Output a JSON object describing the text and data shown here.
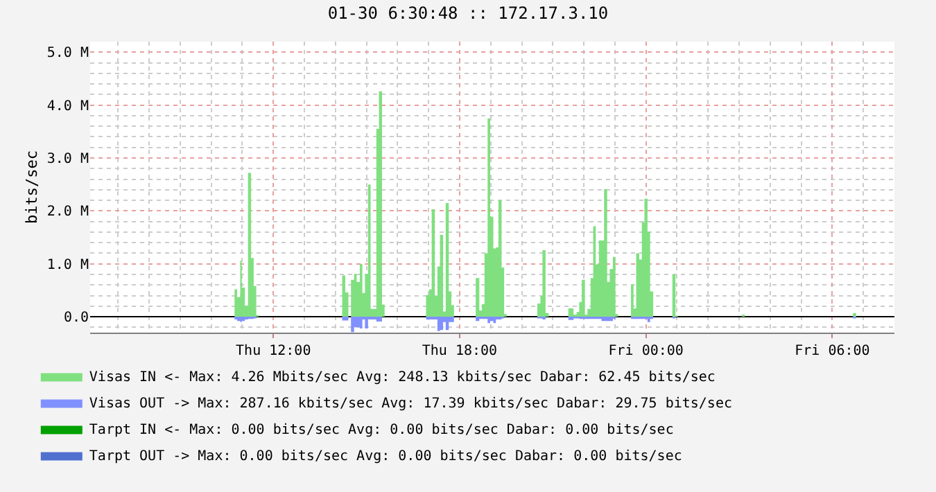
{
  "chart_data": {
    "type": "area",
    "title": "01-30 6:30:48 :: 172.17.3.10",
    "ylabel": "bits/sec",
    "x": [
      "--01-29T10:45",
      "--01-29T10:50",
      "--01-29T10:56",
      "--01-29T10:59",
      "--01-29T11:05",
      "--01-29T11:11",
      "--01-29T11:17",
      "--01-29T11:22",
      "--01-29T11:27",
      "--01-29T11:32",
      "--01-29T14:13",
      "--01-29T14:19",
      "--01-29T14:25",
      "--01-29T14:30",
      "--01-29T14:36",
      "--01-29T14:41",
      "--01-29T14:47",
      "--01-29T14:52",
      "--01-29T14:57",
      "--01-29T15:03",
      "--01-29T15:08",
      "--01-29T15:13",
      "--01-29T15:19",
      "--01-29T15:24",
      "--01-29T15:30",
      "--01-29T15:35",
      "--01-29T16:55",
      "--01-29T17:01",
      "--01-29T17:06",
      "--01-29T17:12",
      "--01-29T17:17",
      "--01-29T17:22",
      "--01-29T17:28",
      "--01-29T17:33",
      "--01-29T17:39",
      "--01-29T17:44",
      "--01-29T17:49",
      "--01-29T18:31",
      "--01-29T18:38",
      "--01-29T18:43",
      "--01-29T18:48",
      "--01-29T18:54",
      "--01-29T18:59",
      "--01-29T19:05",
      "--01-29T19:10",
      "--01-29T19:15",
      "--01-29T19:21",
      "--01-29T19:26",
      "--01-29T19:31",
      "--01-29T20:30",
      "--01-29T20:36",
      "--01-29T20:40",
      "--01-29T20:46",
      "--01-29T20:52",
      "--01-29T21:30",
      "--01-29T21:36",
      "--01-29T21:40",
      "--01-29T21:46",
      "--01-29T21:51",
      "--01-29T21:56",
      "--01-29T22:02",
      "--01-29T22:07",
      "--01-29T22:13",
      "--01-29T22:18",
      "--01-29T22:23",
      "--01-29T22:29",
      "--01-29T22:34",
      "--01-29T22:39",
      "--01-29T22:45",
      "--01-29T22:50",
      "--01-29T22:56",
      "--01-29T23:01",
      "--01-29T23:06",
      "--01-29T23:31",
      "--01-29T23:36",
      "--01-29T23:41",
      "--01-29T23:47",
      "--01-29T23:52",
      "--01-29T23:57",
      "--01-30T00:03",
      "--01-30T00:08",
      "--01-30T00:14",
      "--01-30T00:51",
      "--01-30T00:57",
      "--01-30T01:02",
      "--01-30T03:05",
      "--01-30T03:11",
      "--01-30T06:40",
      "--01-30T06:46"
    ],
    "series": [
      {
        "name": "Visas IN <- Max: 4.26 Mbits/sec Avg: 248.13 kbits/sec Dabar: 62.45 bits/sec",
        "color": "#80e080",
        "values": [
          0.52,
          0.37,
          1.06,
          0.55,
          0.21,
          2.72,
          1.11,
          0.58,
          0.03,
          0,
          0.78,
          0.46,
          0,
          0.7,
          0.81,
          0.66,
          1.0,
          0.45,
          0.81,
          2.5,
          0.15,
          0.15,
          3.55,
          4.26,
          0.23,
          0,
          0.41,
          0.52,
          2.03,
          0.4,
          0.95,
          1.55,
          0.1,
          2.15,
          0.48,
          0.22,
          0,
          0.73,
          0.12,
          0.24,
          1.2,
          3.75,
          1.89,
          1.29,
          1.31,
          2.2,
          0.93,
          0.05,
          0,
          0.25,
          0.39,
          1.26,
          0.07,
          0,
          0.16,
          0.16,
          0.04,
          0.09,
          0.28,
          0.7,
          0.04,
          0.15,
          0.73,
          1.71,
          0.99,
          1.44,
          1.44,
          2.41,
          0.66,
          0.9,
          1.13,
          0.05,
          0,
          0.61,
          0.16,
          1.2,
          1.08,
          1.79,
          2.23,
          1.61,
          0.48,
          0,
          0.8,
          0.02,
          0,
          0.04,
          0,
          0.07,
          0
        ]
      },
      {
        "name": "Visas OUT -> Max: 287.16 kbits/sec Avg: 17.39 kbits/sec Dabar: 29.75 bits/sec",
        "color": "#8090ff",
        "values": [
          -0.05,
          -0.08,
          -0.1,
          -0.08,
          -0.05,
          -0.04,
          -0.04,
          -0.03,
          0,
          0,
          -0.07,
          -0.07,
          0,
          -0.29,
          -0.2,
          -0.2,
          -0.22,
          -0.05,
          -0.22,
          -0.05,
          -0.05,
          -0.05,
          -0.09,
          -0.09,
          0,
          0,
          -0.05,
          -0.05,
          -0.05,
          -0.05,
          -0.27,
          -0.25,
          -0.1,
          -0.25,
          -0.1,
          -0.1,
          0,
          -0.08,
          -0.04,
          -0.04,
          -0.04,
          -0.12,
          -0.08,
          -0.12,
          -0.05,
          -0.05,
          -0.03,
          0,
          0,
          -0.03,
          -0.03,
          -0.05,
          0,
          0,
          -0.06,
          -0.06,
          -0.03,
          -0.03,
          -0.04,
          -0.04,
          -0.04,
          -0.04,
          -0.04,
          -0.04,
          -0.04,
          -0.04,
          -0.08,
          -0.08,
          -0.08,
          -0.08,
          -0.04,
          0,
          0,
          -0.04,
          -0.04,
          -0.04,
          -0.04,
          -0.04,
          -0.04,
          -0.1,
          -0.04,
          0,
          -0.03,
          0,
          0,
          0,
          0,
          -0.03,
          0
        ]
      },
      {
        "name": "Tarpt IN <- Max: 0.00 bits/sec Avg: 0.00 bits/sec Dabar: 0.00 bits/sec",
        "color": "#00a000",
        "values": [
          null,
          null,
          null,
          null,
          null,
          null,
          null,
          null,
          null,
          null,
          null,
          null,
          null,
          null,
          null,
          null,
          null,
          null,
          null,
          null,
          null,
          null,
          null,
          null,
          null,
          null,
          null,
          null,
          null,
          null,
          null,
          null,
          null,
          null,
          null,
          null,
          null,
          null,
          null,
          null,
          null,
          null,
          null,
          null,
          null,
          null,
          null,
          null,
          null,
          null,
          null,
          null,
          null,
          null,
          null,
          null,
          null,
          null,
          null,
          null,
          null,
          null,
          null,
          null,
          null,
          null,
          null,
          null,
          null,
          null,
          null,
          null,
          null,
          null,
          null,
          null,
          null,
          null,
          null,
          null,
          null,
          null,
          null,
          null,
          null,
          null,
          null,
          null,
          null
        ]
      },
      {
        "name": "Tarpt OUT -> Max: 0.00 bits/sec Avg: 0.00 bits/sec Dabar: 0.00 bits/sec",
        "color": "#5070d0",
        "values": [
          null,
          null,
          null,
          null,
          null,
          null,
          null,
          null,
          null,
          null,
          null,
          null,
          null,
          null,
          null,
          null,
          null,
          null,
          null,
          null,
          null,
          null,
          null,
          null,
          null,
          null,
          null,
          null,
          null,
          null,
          null,
          null,
          null,
          null,
          null,
          null,
          null,
          null,
          null,
          null,
          null,
          null,
          null,
          null,
          null,
          null,
          null,
          null,
          null,
          null,
          null,
          null,
          null,
          null,
          null,
          null,
          null,
          null,
          null,
          null,
          null,
          null,
          null,
          null,
          null,
          null,
          null,
          null,
          null,
          null,
          null,
          null,
          null,
          null,
          null,
          null,
          null,
          null,
          null,
          null,
          null,
          null,
          null,
          null,
          null,
          null,
          null,
          null,
          null
        ]
      }
    ],
    "xlim": [
      "--01-29T06:06",
      "--01-30T08:00"
    ],
    "xticks": [
      {
        "value": "--01-29T12:00",
        "label": "Thu 12:00"
      },
      {
        "value": "--01-29T18:00",
        "label": "Thu 18:00"
      },
      {
        "value": "--01-30T00:00",
        "label": "Fri 00:00"
      },
      {
        "value": "--01-30T06:00",
        "label": "Fri 06:00"
      }
    ],
    "ylim": [
      -0.3,
      5.2
    ],
    "yticks": [
      {
        "value": 0,
        "label": "0.0"
      },
      {
        "value": 1,
        "label": "1.0 M"
      },
      {
        "value": 2,
        "label": "2.0 M"
      },
      {
        "value": 3,
        "label": "3.0 M"
      },
      {
        "value": 4,
        "label": "4.0 M"
      },
      {
        "value": 5,
        "label": "5.0 M"
      }
    ],
    "grid": true,
    "legend": "bottom left"
  }
}
